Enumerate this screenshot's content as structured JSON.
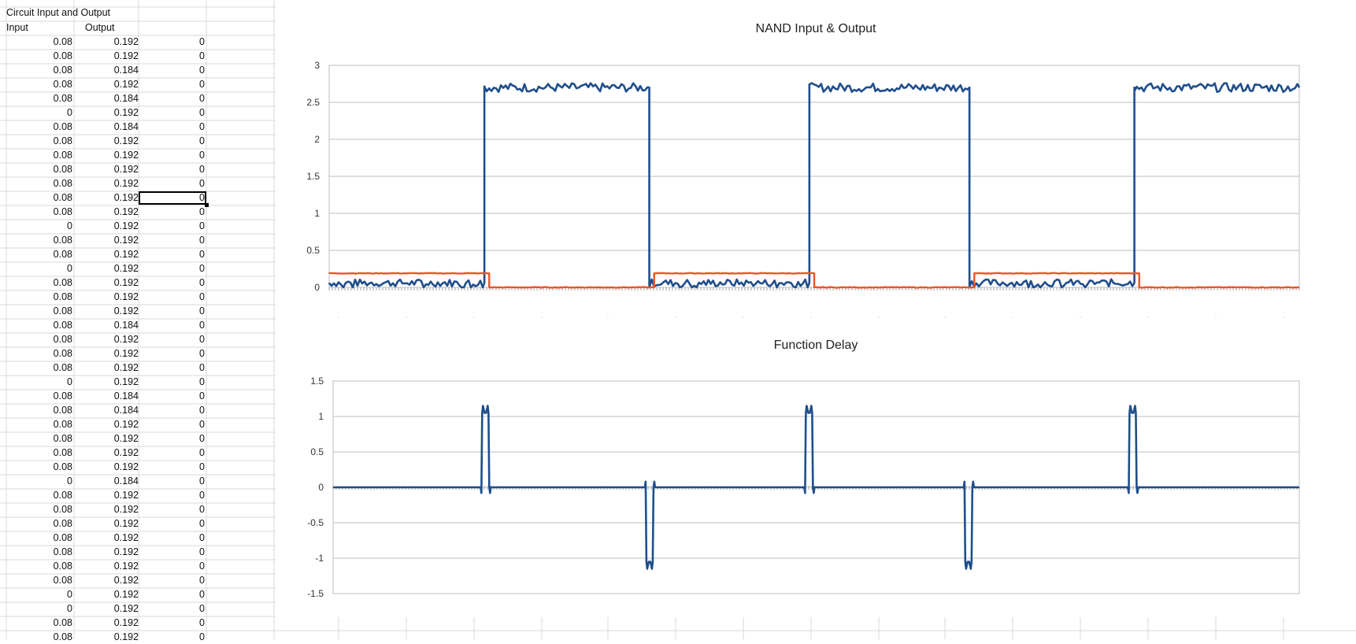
{
  "sheet": {
    "title": "Circuit Input and Output",
    "col_headers": [
      "Input",
      "Output"
    ],
    "rows": [
      [
        "0.08",
        "0.192",
        "0"
      ],
      [
        "0.08",
        "0.192",
        "0"
      ],
      [
        "0.08",
        "0.184",
        "0"
      ],
      [
        "0.08",
        "0.192",
        "0"
      ],
      [
        "0.08",
        "0.184",
        "0"
      ],
      [
        "0",
        "0.192",
        "0"
      ],
      [
        "0.08",
        "0.184",
        "0"
      ],
      [
        "0.08",
        "0.192",
        "0"
      ],
      [
        "0.08",
        "0.192",
        "0"
      ],
      [
        "0.08",
        "0.192",
        "0"
      ],
      [
        "0.08",
        "0.192",
        "0"
      ],
      [
        "0.08",
        "0.192",
        "0"
      ],
      [
        "0.08",
        "0.192",
        "0"
      ],
      [
        "0",
        "0.192",
        "0"
      ],
      [
        "0.08",
        "0.192",
        "0"
      ],
      [
        "0.08",
        "0.192",
        "0"
      ],
      [
        "0",
        "0.192",
        "0"
      ],
      [
        "0.08",
        "0.192",
        "0"
      ],
      [
        "0.08",
        "0.192",
        "0"
      ],
      [
        "0.08",
        "0.192",
        "0"
      ],
      [
        "0.08",
        "0.184",
        "0"
      ],
      [
        "0.08",
        "0.192",
        "0"
      ],
      [
        "0.08",
        "0.192",
        "0"
      ],
      [
        "0.08",
        "0.192",
        "0"
      ],
      [
        "0",
        "0.192",
        "0"
      ],
      [
        "0.08",
        "0.184",
        "0"
      ],
      [
        "0.08",
        "0.184",
        "0"
      ],
      [
        "0.08",
        "0.192",
        "0"
      ],
      [
        "0.08",
        "0.192",
        "0"
      ],
      [
        "0.08",
        "0.192",
        "0"
      ],
      [
        "0.08",
        "0.192",
        "0"
      ],
      [
        "0",
        "0.184",
        "0"
      ],
      [
        "0.08",
        "0.192",
        "0"
      ],
      [
        "0.08",
        "0.192",
        "0"
      ],
      [
        "0.08",
        "0.192",
        "0"
      ],
      [
        "0.08",
        "0.192",
        "0"
      ],
      [
        "0.08",
        "0.192",
        "0"
      ],
      [
        "0.08",
        "0.192",
        "0"
      ],
      [
        "0.08",
        "0.192",
        "0"
      ],
      [
        "0",
        "0.192",
        "0"
      ],
      [
        "0",
        "0.192",
        "0"
      ],
      [
        "0.08",
        "0.192",
        "0"
      ],
      [
        "0.08",
        "0.192",
        "0"
      ]
    ],
    "selected_cell": {
      "row": 12,
      "col": 3
    }
  },
  "chart_data": [
    {
      "type": "line",
      "title": "NAND Input & Output",
      "ylim": [
        0,
        3
      ],
      "yticks": [
        "0",
        "0.5",
        "1",
        "1.5",
        "2",
        "2.5",
        "3"
      ],
      "grid": true,
      "series": [
        {
          "color": "#1f4e8c",
          "segments": [
            [
              0,
              0.16,
              0.06
            ],
            [
              0.16,
              0.33,
              2.7
            ],
            [
              0.33,
              0.495,
              0.06
            ],
            [
              0.495,
              0.66,
              2.7
            ],
            [
              0.66,
              0.83,
              0.06
            ],
            [
              0.83,
              1.0,
              2.7
            ]
          ]
        },
        {
          "color": "#f0522a",
          "segments": [
            [
              0,
              0.165,
              0.19
            ],
            [
              0.165,
              0.335,
              0.0
            ],
            [
              0.335,
              0.5,
              0.19
            ],
            [
              0.5,
              0.665,
              0.0
            ],
            [
              0.665,
              0.835,
              0.19
            ],
            [
              0.835,
              1.0,
              0.0
            ]
          ]
        }
      ],
      "transition_times": [
        0.16,
        0.33,
        0.495,
        0.66,
        0.83
      ]
    },
    {
      "type": "line",
      "title": "Function Delay",
      "ylim": [
        -1.5,
        1.5
      ],
      "yticks": [
        "-1.5",
        "-1",
        "-0.5",
        "0",
        "0.5",
        "1",
        "1.5"
      ],
      "grid": true,
      "series": [
        {
          "color": "#1f4e8c",
          "pulses": [
            [
              0.16,
              1.05
            ],
            [
              0.33,
              -1.05
            ],
            [
              0.495,
              1.05
            ],
            [
              0.66,
              -1.05
            ],
            [
              0.83,
              1.05
            ]
          ]
        }
      ]
    }
  ]
}
